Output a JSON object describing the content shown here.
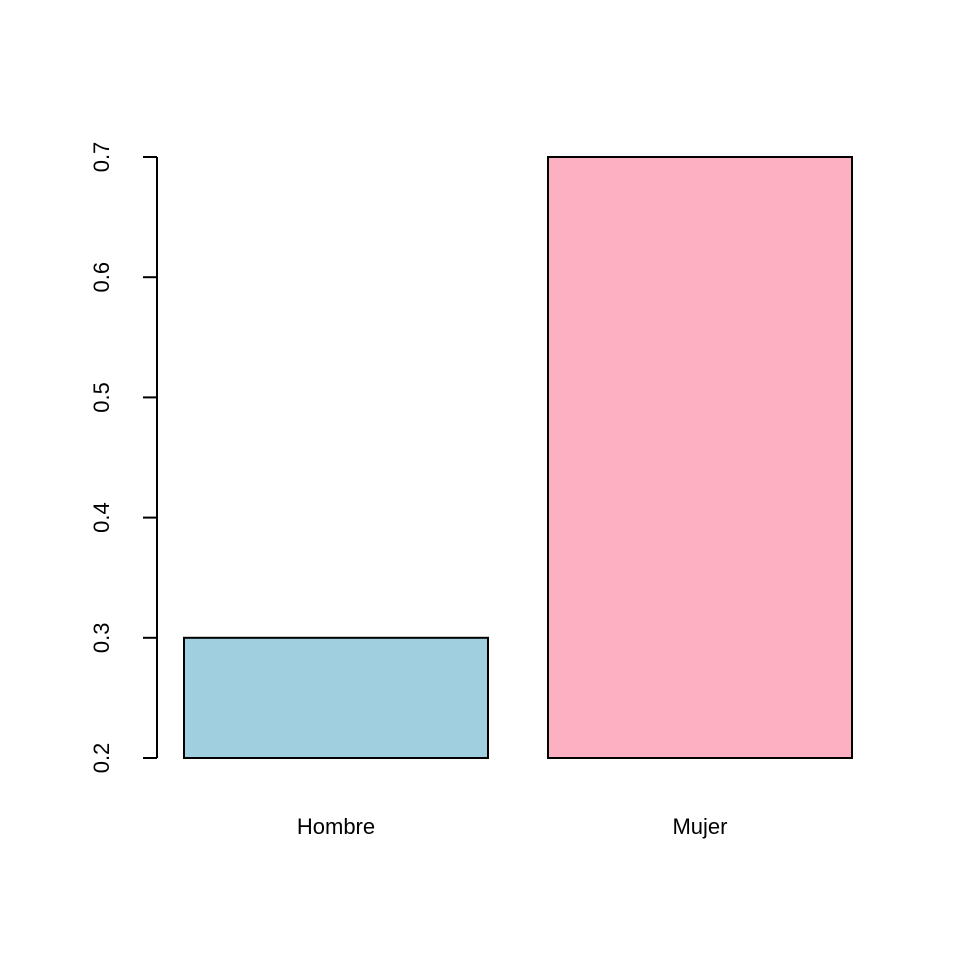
{
  "chart_data": {
    "type": "bar",
    "title": "",
    "xlabel": "",
    "ylabel": "",
    "categories": [
      "Hombre",
      "Mujer"
    ],
    "values": [
      0.3,
      0.7
    ],
    "colors": [
      "#A0CFE0",
      "#FDB0C2"
    ],
    "ylim": [
      0.2,
      0.7
    ],
    "yticks": [
      0.2,
      0.3,
      0.4,
      0.5,
      0.6,
      0.7
    ],
    "ytick_labels": [
      "0.2",
      "0.3",
      "0.4",
      "0.5",
      "0.6",
      "0.7"
    ],
    "grid": false,
    "legend": "none"
  }
}
